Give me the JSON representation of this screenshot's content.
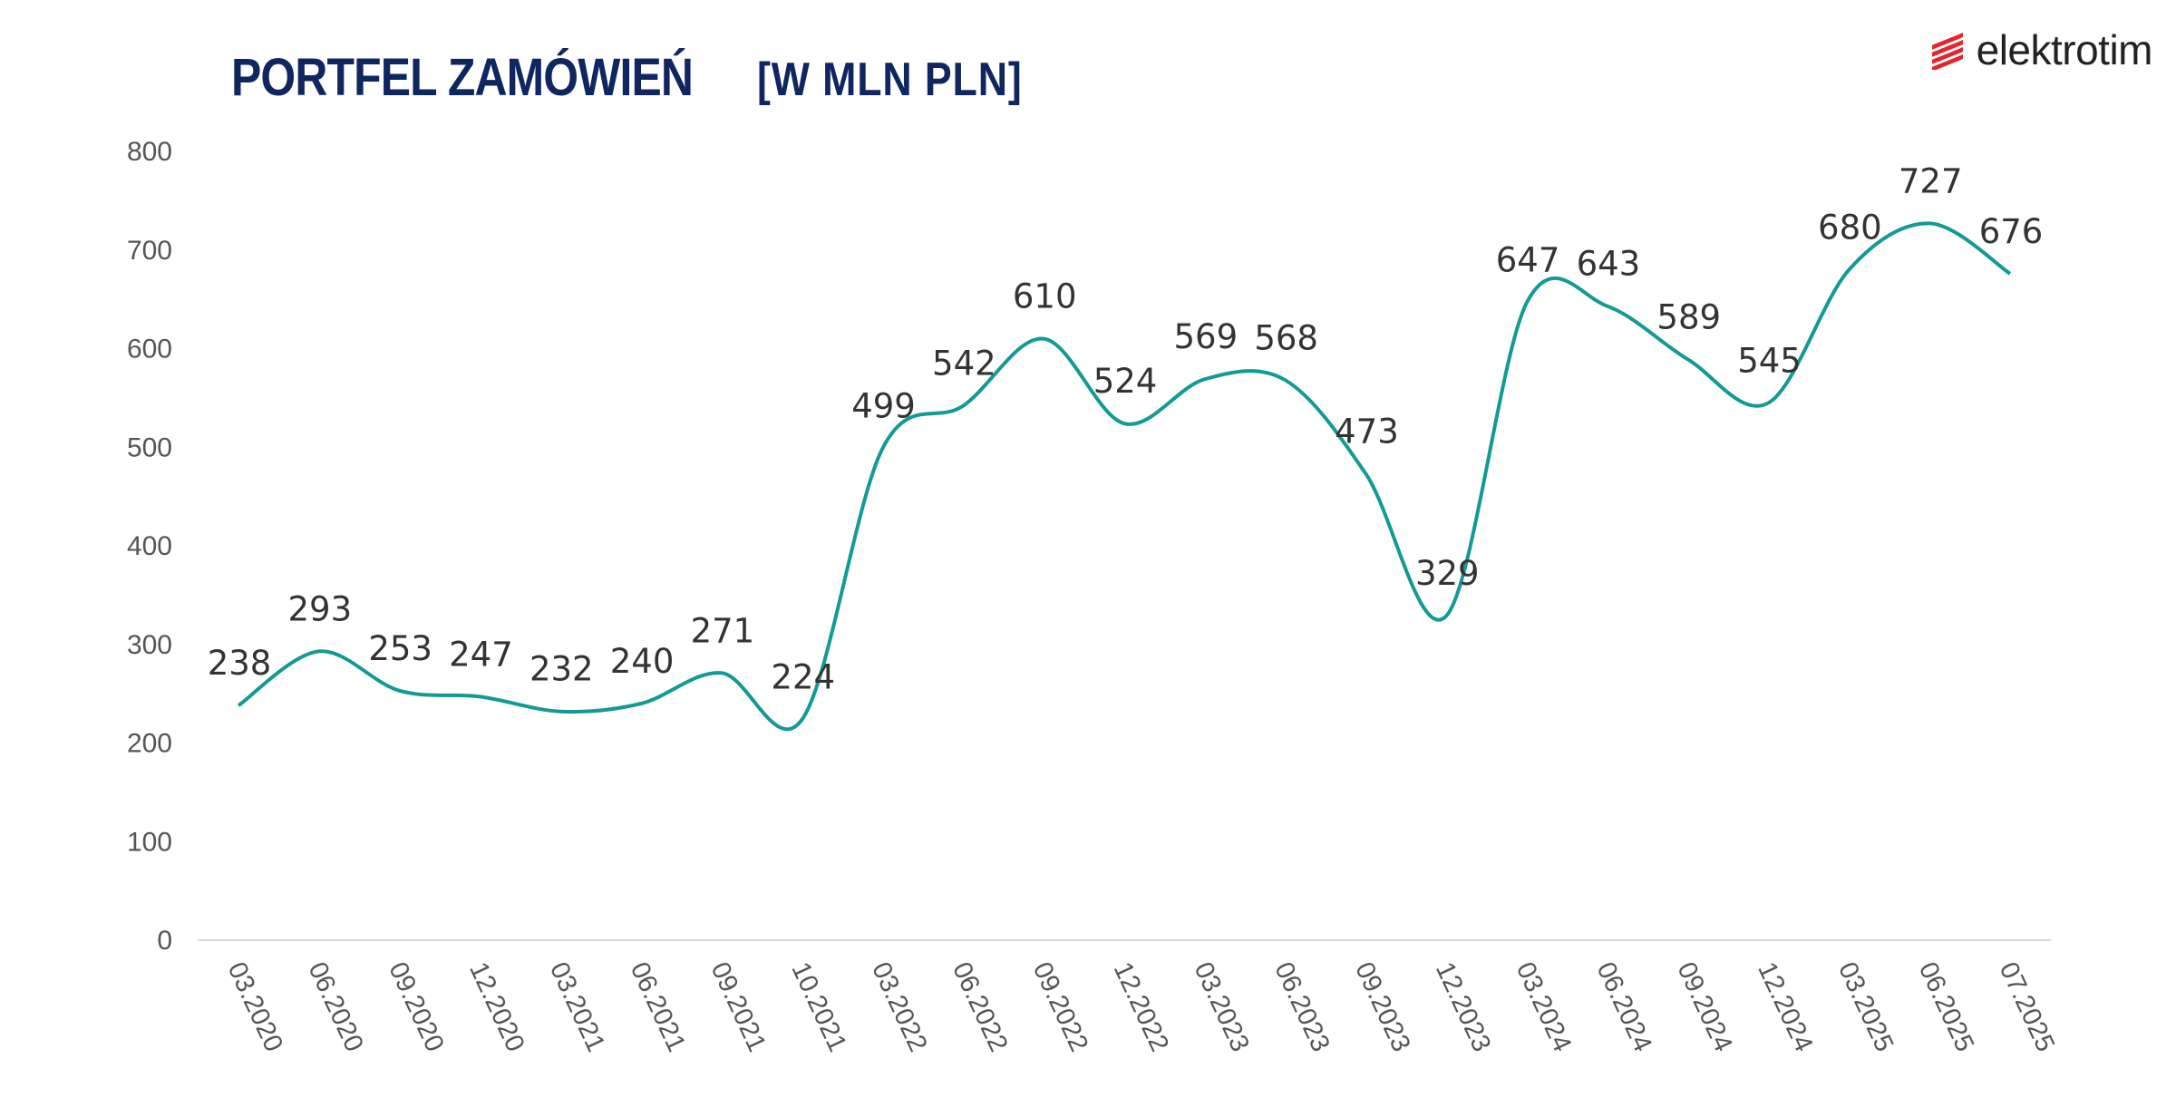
{
  "header": {
    "title": "PORTFEL ZAMÓWIEŃ",
    "unit": "[W MLN PLN]"
  },
  "logo": {
    "text": "elektrotim",
    "icon": "elektrotim-logo-icon",
    "color": "#e3262e"
  },
  "colors": {
    "title": "#0f2660",
    "line": "#139a95",
    "axis": "#d9d9d9"
  },
  "chart_data": {
    "type": "line",
    "title": "PORTFEL ZAMÓWIEŃ [W MLN PLN]",
    "xlabel": "",
    "ylabel": "",
    "ylim": [
      0,
      800
    ],
    "yticks": [
      0,
      100,
      200,
      300,
      400,
      500,
      600,
      700,
      800
    ],
    "grid": false,
    "categories": [
      "03.2020",
      "06.2020",
      "09.2020",
      "12.2020",
      "03.2021",
      "06.2021",
      "09.2021",
      "10.2021",
      "03.2022",
      "06.2022",
      "09.2022",
      "12.2022",
      "03.2023",
      "06.2023",
      "09.2023",
      "12.2023",
      "03.2024",
      "06.2024",
      "09.2024",
      "12.2024",
      "03.2025",
      "06.2025",
      "07.2025"
    ],
    "series": [
      {
        "name": "Portfel zamówień",
        "values": [
          238,
          293,
          253,
          247,
          232,
          240,
          271,
          224,
          499,
          542,
          610,
          524,
          569,
          568,
          473,
          329,
          647,
          643,
          589,
          545,
          680,
          727,
          676
        ]
      }
    ],
    "data_labels": [
      "238",
      "293",
      "253",
      "247",
      "232",
      "240",
      "271",
      "224",
      "499",
      "542",
      "610",
      "524",
      "569",
      "568",
      "473",
      "329",
      "647",
      "643",
      "589",
      "545",
      "680",
      "727",
      "676"
    ]
  }
}
